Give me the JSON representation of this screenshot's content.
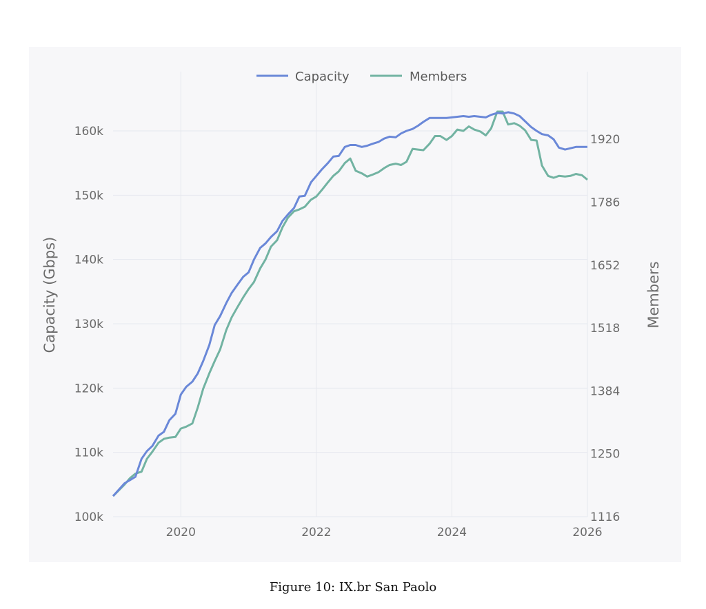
{
  "caption": "Figure 10: IX.br San Paolo",
  "chart_data": {
    "type": "line",
    "legend_position": "top-center",
    "grid": true,
    "colors": {
      "background": "#f7f7f9",
      "Capacity": "#6a88d8",
      "Members": "#72b3a2",
      "grid": "#e6e8ee"
    },
    "x_ticks": [
      "2020",
      "2022",
      "2024",
      "2026"
    ],
    "xlim": [
      2019.0,
      2026.0
    ],
    "y_left": {
      "label": "Capacity (Gbps)",
      "ticks": [
        "100k",
        "110k",
        "120k",
        "130k",
        "140k",
        "150k",
        "160k"
      ],
      "tick_values": [
        100000,
        110000,
        120000,
        130000,
        140000,
        150000,
        160000
      ],
      "ylim": [
        100000,
        166000
      ]
    },
    "y_right": {
      "label": "Members",
      "ticks": [
        "1116",
        "1250",
        "1384",
        "1518",
        "1652",
        "1786",
        "1920"
      ],
      "tick_values": [
        1116,
        1250,
        1384,
        1518,
        1652,
        1786,
        1920
      ],
      "ylim": [
        1116,
        2020
      ]
    },
    "series": [
      {
        "name": "Capacity",
        "axis": "left",
        "x": [
          2019.0,
          2019.17,
          2019.25,
          2019.33,
          2019.42,
          2019.5,
          2019.58,
          2019.67,
          2019.75,
          2019.83,
          2019.92,
          2020.0,
          2020.08,
          2020.17,
          2020.25,
          2020.33,
          2020.42,
          2020.5,
          2020.58,
          2020.67,
          2020.75,
          2020.83,
          2020.92,
          2021.0,
          2021.08,
          2021.17,
          2021.25,
          2021.33,
          2021.42,
          2021.5,
          2021.58,
          2021.67,
          2021.75,
          2021.83,
          2021.92,
          2022.0,
          2022.08,
          2022.17,
          2022.25,
          2022.33,
          2022.42,
          2022.5,
          2022.58,
          2022.67,
          2022.75,
          2022.83,
          2022.92,
          2023.0,
          2023.08,
          2023.17,
          2023.25,
          2023.33,
          2023.42,
          2023.5,
          2023.58,
          2023.67,
          2023.75,
          2023.83,
          2023.92,
          2024.0,
          2024.08,
          2024.17,
          2024.25,
          2024.33,
          2024.42,
          2024.5,
          2024.58,
          2024.67,
          2024.75,
          2024.83,
          2024.92,
          2025.0,
          2025.08,
          2025.17,
          2025.25,
          2025.33,
          2025.42,
          2025.5,
          2025.58,
          2025.67,
          2025.75,
          2025.83,
          2025.92,
          2026.0
        ],
        "values": [
          103200,
          105200,
          105700,
          106200,
          109000,
          110200,
          111000,
          112600,
          113200,
          115000,
          116000,
          119000,
          120200,
          121000,
          122300,
          124200,
          126700,
          129800,
          131200,
          133200,
          134800,
          136000,
          137300,
          138000,
          140000,
          141800,
          142500,
          143500,
          144400,
          146000,
          147000,
          148000,
          149800,
          149900,
          152000,
          153000,
          154000,
          155000,
          156000,
          156100,
          157500,
          157800,
          157800,
          157500,
          157700,
          158000,
          158300,
          158800,
          159100,
          159000,
          159600,
          160000,
          160300,
          160800,
          161400,
          162000,
          162000,
          162000,
          162000,
          162100,
          162200,
          162300,
          162200,
          162300,
          162200,
          162100,
          162500,
          162800,
          162700,
          162900,
          162700,
          162300,
          161500,
          160600,
          160000,
          159500,
          159300,
          158700,
          157400,
          157100,
          157300,
          157500,
          157500,
          157500
        ]
      },
      {
        "name": "Members",
        "axis": "left",
        "x": [
          2019.0,
          2019.17,
          2019.25,
          2019.33,
          2019.42,
          2019.5,
          2019.58,
          2019.67,
          2019.75,
          2019.83,
          2019.92,
          2020.0,
          2020.08,
          2020.17,
          2020.25,
          2020.33,
          2020.42,
          2020.5,
          2020.58,
          2020.67,
          2020.75,
          2020.83,
          2020.92,
          2021.0,
          2021.08,
          2021.17,
          2021.25,
          2021.33,
          2021.42,
          2021.5,
          2021.58,
          2021.67,
          2021.75,
          2021.83,
          2021.92,
          2022.0,
          2022.08,
          2022.17,
          2022.25,
          2022.33,
          2022.42,
          2022.5,
          2022.58,
          2022.67,
          2022.75,
          2022.83,
          2022.92,
          2023.0,
          2023.08,
          2023.17,
          2023.25,
          2023.33,
          2023.42,
          2023.5,
          2023.58,
          2023.67,
          2023.75,
          2023.83,
          2023.92,
          2024.0,
          2024.08,
          2024.17,
          2024.25,
          2024.33,
          2024.42,
          2024.5,
          2024.58,
          2024.67,
          2024.75,
          2024.83,
          2024.92,
          2025.0,
          2025.08,
          2025.17,
          2025.25,
          2025.33,
          2025.42,
          2025.5,
          2025.58,
          2025.67,
          2025.75,
          2025.83,
          2025.92,
          2026.0
        ],
        "values": [
          103200,
          105000,
          106000,
          106700,
          107000,
          109000,
          110100,
          111500,
          112100,
          112300,
          112400,
          113700,
          114000,
          114500,
          117000,
          119900,
          122300,
          124200,
          126000,
          129000,
          131000,
          132500,
          134100,
          135400,
          136500,
          138600,
          140000,
          142000,
          143000,
          145000,
          146500,
          147500,
          147800,
          148200,
          149300,
          149800,
          150800,
          152000,
          153000,
          153700,
          155000,
          155700,
          153800,
          153400,
          152900,
          153200,
          153600,
          154200,
          154700,
          154900,
          154700,
          155200,
          157200,
          157100,
          157000,
          158000,
          159200,
          159200,
          158600,
          159200,
          160200,
          160000,
          160700,
          160200,
          159900,
          159300,
          160400,
          163000,
          163000,
          161000,
          161200,
          160800,
          160100,
          158600,
          158500,
          154600,
          153000,
          152700,
          153000,
          152900,
          153000,
          153300,
          153100,
          152400
        ]
      }
    ]
  }
}
